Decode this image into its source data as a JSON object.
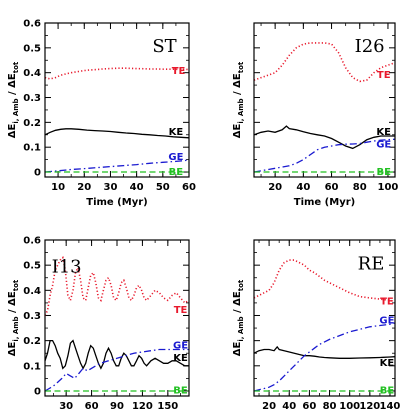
{
  "figure": {
    "xlabel": "Time (Myr)",
    "ylabel_main": "ΔE",
    "ylabel_sub": "i, Amb",
    "ylabel_mid": " / ΔE",
    "ylabel_sub2": "tot"
  },
  "colors": {
    "TE": "#e8192c",
    "KE": "#000000",
    "GE": "#1a1ad0",
    "BE": "#22c022"
  },
  "chart_data": [
    {
      "type": "line",
      "title": "ST",
      "xlim": [
        5,
        60
      ],
      "ylim": [
        -0.02,
        0.6
      ],
      "xticks": [
        10,
        20,
        30,
        40,
        50,
        60
      ],
      "yticks": [
        0,
        0.1,
        0.2,
        0.3,
        0.4,
        0.5,
        0.6
      ],
      "ytick_labels": [
        "0",
        "0.1",
        "0.2",
        "0.3",
        "0.4",
        "0.5",
        "0.6"
      ],
      "series": [
        {
          "name": "TE",
          "style": "dotted",
          "label_at": [
            56,
            0.41
          ],
          "x": [
            5,
            7,
            9,
            11,
            13,
            15,
            18,
            21,
            24,
            27,
            30,
            33,
            36,
            39,
            42,
            45,
            48,
            51,
            54,
            57,
            60
          ],
          "y": [
            0.38,
            0.375,
            0.38,
            0.39,
            0.395,
            0.4,
            0.405,
            0.41,
            0.412,
            0.415,
            0.417,
            0.418,
            0.418,
            0.417,
            0.416,
            0.415,
            0.415,
            0.414,
            0.414,
            0.413,
            0.413
          ]
        },
        {
          "name": "KE",
          "style": "solid",
          "label_at": [
            55,
            0.165
          ],
          "x": [
            5,
            7,
            9,
            11,
            13,
            15,
            18,
            21,
            24,
            27,
            30,
            33,
            36,
            39,
            42,
            45,
            48,
            51,
            54,
            57,
            60
          ],
          "y": [
            0.15,
            0.16,
            0.168,
            0.172,
            0.174,
            0.174,
            0.172,
            0.169,
            0.167,
            0.165,
            0.163,
            0.16,
            0.157,
            0.155,
            0.152,
            0.15,
            0.147,
            0.145,
            0.142,
            0.14,
            0.138
          ]
        },
        {
          "name": "GE",
          "style": "dashdot",
          "label_at": [
            55,
            0.065
          ],
          "x": [
            5,
            10,
            15,
            20,
            25,
            30,
            35,
            40,
            45,
            50,
            55,
            60
          ],
          "y": [
            0.0,
            0.005,
            0.01,
            0.014,
            0.018,
            0.022,
            0.026,
            0.03,
            0.035,
            0.039,
            0.043,
            0.048
          ]
        },
        {
          "name": "BE",
          "style": "dashed",
          "label_at": [
            55,
            0.005
          ],
          "x": [
            5,
            60
          ],
          "y": [
            0.0,
            0.0
          ]
        }
      ]
    },
    {
      "type": "line",
      "title": "I26",
      "xlim": [
        5,
        105
      ],
      "ylim": [
        -0.02,
        0.6
      ],
      "xticks": [
        20,
        40,
        60,
        80,
        100
      ],
      "yticks": [
        0,
        0.1,
        0.2,
        0.3,
        0.4,
        0.5,
        0.6
      ],
      "ytick_labels": [
        "",
        "",
        "",
        "",
        "",
        "",
        ""
      ],
      "series": [
        {
          "name": "TE",
          "style": "dotted",
          "label_at": [
            97,
            0.395
          ],
          "x": [
            5,
            10,
            15,
            20,
            25,
            30,
            35,
            40,
            45,
            50,
            55,
            60,
            65,
            70,
            75,
            80,
            85,
            90,
            95,
            100,
            105
          ],
          "y": [
            0.37,
            0.38,
            0.39,
            0.4,
            0.43,
            0.47,
            0.5,
            0.515,
            0.52,
            0.52,
            0.52,
            0.515,
            0.48,
            0.42,
            0.38,
            0.365,
            0.37,
            0.4,
            0.42,
            0.43,
            0.44
          ]
        },
        {
          "name": "KE",
          "style": "solid",
          "label_at": [
            97,
            0.165
          ],
          "x": [
            5,
            10,
            15,
            20,
            25,
            28,
            30,
            35,
            40,
            45,
            50,
            55,
            60,
            65,
            70,
            75,
            80,
            85,
            90,
            95,
            100,
            105
          ],
          "y": [
            0.15,
            0.16,
            0.165,
            0.16,
            0.17,
            0.185,
            0.175,
            0.17,
            0.162,
            0.155,
            0.15,
            0.145,
            0.135,
            0.12,
            0.105,
            0.095,
            0.11,
            0.13,
            0.14,
            0.145,
            0.145,
            0.145
          ]
        },
        {
          "name": "GE",
          "style": "dashdot",
          "label_at": [
            97,
            0.115
          ],
          "x": [
            5,
            10,
            15,
            20,
            25,
            30,
            35,
            40,
            45,
            50,
            55,
            60,
            65,
            70,
            75,
            80,
            85,
            90,
            95,
            100,
            105
          ],
          "y": [
            0.0,
            0.005,
            0.01,
            0.015,
            0.02,
            0.025,
            0.035,
            0.05,
            0.07,
            0.09,
            0.1,
            0.105,
            0.11,
            0.112,
            0.113,
            0.115,
            0.12,
            0.125,
            0.128,
            0.13,
            0.132
          ]
        },
        {
          "name": "BE",
          "style": "dashed",
          "label_at": [
            97,
            0.005
          ],
          "x": [
            5,
            105
          ],
          "y": [
            0.0,
            0.0
          ]
        }
      ]
    },
    {
      "type": "line",
      "title": "I13",
      "xlim": [
        5,
        175
      ],
      "ylim": [
        -0.02,
        0.6
      ],
      "xticks": [
        30,
        60,
        90,
        120,
        150
      ],
      "yticks": [
        0,
        0.1,
        0.2,
        0.3,
        0.4,
        0.5,
        0.6
      ],
      "ytick_labels": [
        "0",
        "0.1",
        "0.2",
        "0.3",
        "0.4",
        "0.5",
        "0.6"
      ],
      "series": [
        {
          "name": "TE",
          "style": "dotted",
          "label_at": [
            165,
            0.325
          ],
          "x": [
            5,
            8,
            11,
            14,
            17,
            20,
            23,
            26,
            29,
            32,
            35,
            38,
            41,
            44,
            47,
            50,
            53,
            56,
            59,
            62,
            65,
            68,
            71,
            74,
            77,
            80,
            83,
            86,
            89,
            92,
            95,
            98,
            101,
            104,
            107,
            110,
            113,
            116,
            119,
            122,
            125,
            130,
            135,
            140,
            145,
            150,
            155,
            160,
            165,
            170,
            175
          ],
          "y": [
            0.3,
            0.32,
            0.38,
            0.42,
            0.48,
            0.5,
            0.52,
            0.53,
            0.48,
            0.38,
            0.36,
            0.4,
            0.47,
            0.49,
            0.44,
            0.37,
            0.36,
            0.41,
            0.46,
            0.47,
            0.43,
            0.37,
            0.36,
            0.4,
            0.44,
            0.45,
            0.42,
            0.37,
            0.36,
            0.39,
            0.43,
            0.44,
            0.41,
            0.37,
            0.36,
            0.38,
            0.41,
            0.42,
            0.4,
            0.37,
            0.36,
            0.38,
            0.4,
            0.39,
            0.37,
            0.36,
            0.38,
            0.39,
            0.37,
            0.35,
            0.36
          ]
        },
        {
          "name": "KE",
          "style": "solid",
          "label_at": [
            165,
            0.135
          ],
          "x": [
            5,
            8,
            11,
            14,
            17,
            20,
            23,
            26,
            29,
            32,
            35,
            38,
            41,
            44,
            47,
            50,
            53,
            56,
            59,
            62,
            65,
            68,
            71,
            74,
            77,
            80,
            83,
            86,
            89,
            92,
            95,
            98,
            101,
            104,
            107,
            110,
            113,
            116,
            119,
            122,
            125,
            130,
            135,
            140,
            145,
            150,
            155,
            160,
            165,
            170,
            175
          ],
          "y": [
            0.12,
            0.15,
            0.2,
            0.2,
            0.18,
            0.15,
            0.13,
            0.09,
            0.1,
            0.14,
            0.19,
            0.2,
            0.17,
            0.14,
            0.11,
            0.09,
            0.11,
            0.15,
            0.18,
            0.17,
            0.14,
            0.11,
            0.09,
            0.11,
            0.15,
            0.17,
            0.15,
            0.12,
            0.1,
            0.1,
            0.13,
            0.15,
            0.14,
            0.12,
            0.1,
            0.1,
            0.12,
            0.14,
            0.13,
            0.11,
            0.1,
            0.12,
            0.13,
            0.12,
            0.11,
            0.11,
            0.12,
            0.12,
            0.11,
            0.1,
            0.1
          ]
        },
        {
          "name": "GE",
          "style": "dashdot",
          "label_at": [
            165,
            0.185
          ],
          "x": [
            5,
            10,
            15,
            20,
            25,
            30,
            35,
            40,
            45,
            50,
            55,
            60,
            70,
            80,
            90,
            100,
            110,
            120,
            130,
            140,
            150,
            160,
            170,
            175
          ],
          "y": [
            0.0,
            0.01,
            0.02,
            0.035,
            0.05,
            0.07,
            0.06,
            0.05,
            0.07,
            0.09,
            0.08,
            0.09,
            0.11,
            0.12,
            0.13,
            0.14,
            0.15,
            0.155,
            0.16,
            0.165,
            0.165,
            0.165,
            0.165,
            0.165
          ]
        },
        {
          "name": "BE",
          "style": "dashed",
          "label_at": [
            165,
            0.005
          ],
          "x": [
            5,
            175
          ],
          "y": [
            0.0,
            0.0
          ]
        }
      ]
    },
    {
      "type": "line",
      "title": "RE",
      "xlim": [
        5,
        145
      ],
      "ylim": [
        -0.02,
        0.6
      ],
      "xticks": [
        20,
        40,
        60,
        80,
        100,
        120,
        140
      ],
      "yticks": [
        0,
        0.1,
        0.2,
        0.3,
        0.4,
        0.5,
        0.6
      ],
      "ytick_labels": [
        "",
        "",
        "",
        "",
        "",
        "",
        ""
      ],
      "series": [
        {
          "name": "TE",
          "style": "dotted",
          "label_at": [
            137,
            0.36
          ],
          "x": [
            5,
            10,
            15,
            20,
            25,
            30,
            35,
            40,
            45,
            50,
            55,
            60,
            65,
            70,
            75,
            80,
            90,
            100,
            110,
            120,
            130,
            140,
            145
          ],
          "y": [
            0.37,
            0.38,
            0.39,
            0.4,
            0.43,
            0.48,
            0.51,
            0.52,
            0.52,
            0.51,
            0.5,
            0.48,
            0.47,
            0.455,
            0.44,
            0.43,
            0.41,
            0.39,
            0.375,
            0.37,
            0.365,
            0.36,
            0.355
          ]
        },
        {
          "name": "KE",
          "style": "solid",
          "label_at": [
            137,
            0.115
          ],
          "x": [
            5,
            10,
            15,
            20,
            25,
            28,
            30,
            35,
            40,
            45,
            50,
            55,
            60,
            65,
            70,
            75,
            80,
            90,
            100,
            110,
            120,
            130,
            140,
            145
          ],
          "y": [
            0.15,
            0.16,
            0.165,
            0.165,
            0.16,
            0.175,
            0.165,
            0.16,
            0.155,
            0.15,
            0.145,
            0.14,
            0.14,
            0.138,
            0.135,
            0.133,
            0.132,
            0.13,
            0.13,
            0.131,
            0.132,
            0.133,
            0.135,
            0.136
          ]
        },
        {
          "name": "GE",
          "style": "dashdot",
          "label_at": [
            137,
            0.285
          ],
          "x": [
            5,
            10,
            15,
            20,
            25,
            30,
            35,
            40,
            45,
            50,
            55,
            60,
            65,
            70,
            75,
            80,
            90,
            100,
            110,
            120,
            130,
            140,
            145
          ],
          "y": [
            0.0,
            0.005,
            0.01,
            0.015,
            0.025,
            0.04,
            0.06,
            0.08,
            0.1,
            0.12,
            0.14,
            0.155,
            0.17,
            0.185,
            0.195,
            0.205,
            0.22,
            0.235,
            0.245,
            0.255,
            0.26,
            0.265,
            0.27
          ]
        },
        {
          "name": "BE",
          "style": "dashed",
          "label_at": [
            137,
            0.005
          ],
          "x": [
            5,
            145
          ],
          "y": [
            0.0,
            0.0
          ]
        }
      ]
    }
  ]
}
